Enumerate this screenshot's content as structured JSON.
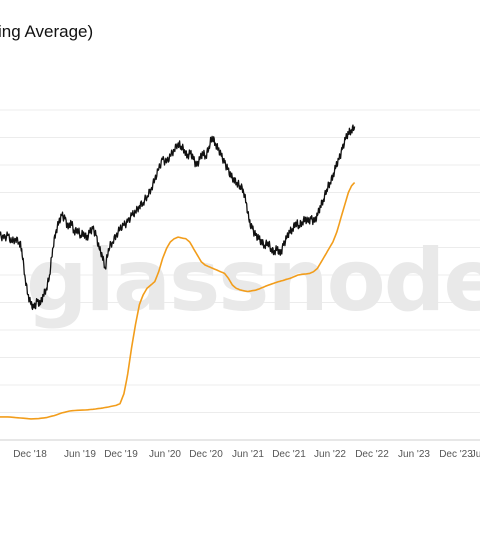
{
  "header": {
    "title": "ing Average)"
  },
  "watermark": "glassnode",
  "chart_data": {
    "type": "line",
    "title": "ing Average)",
    "xlabel": "",
    "ylabel": "",
    "x_ticks": [
      "Dec '18",
      "Jun '19",
      "Dec '19",
      "Jun '20",
      "Dec '20",
      "Jun '21",
      "Dec '21",
      "Jun '22",
      "Dec '22",
      "Jun '23",
      "Dec '23",
      "Ju"
    ],
    "y_range": [
      0,
      100
    ],
    "x_range": [
      2018.5,
      2024.7
    ],
    "grid": true,
    "series": [
      {
        "name": "",
        "color": "#111111",
        "points": [
          [
            2018.5,
            62
          ],
          [
            2018.55,
            61
          ],
          [
            2018.6,
            62
          ],
          [
            2018.65,
            60
          ],
          [
            2018.7,
            61
          ],
          [
            2018.75,
            60
          ],
          [
            2018.78,
            58
          ],
          [
            2018.82,
            50
          ],
          [
            2018.86,
            44
          ],
          [
            2018.9,
            41
          ],
          [
            2018.94,
            40
          ],
          [
            2018.98,
            42
          ],
          [
            2019.02,
            41
          ],
          [
            2019.06,
            44
          ],
          [
            2019.1,
            46
          ],
          [
            2019.14,
            50
          ],
          [
            2019.18,
            58
          ],
          [
            2019.22,
            63
          ],
          [
            2019.26,
            66
          ],
          [
            2019.3,
            68
          ],
          [
            2019.34,
            67
          ],
          [
            2019.38,
            64
          ],
          [
            2019.42,
            66
          ],
          [
            2019.46,
            63
          ],
          [
            2019.5,
            64
          ],
          [
            2019.54,
            62
          ],
          [
            2019.58,
            63
          ],
          [
            2019.62,
            61
          ],
          [
            2019.66,
            63
          ],
          [
            2019.7,
            64
          ],
          [
            2019.74,
            62
          ],
          [
            2019.78,
            58
          ],
          [
            2019.82,
            56
          ],
          [
            2019.86,
            52
          ],
          [
            2019.9,
            58
          ],
          [
            2019.95,
            60
          ],
          [
            2020.0,
            62
          ],
          [
            2020.05,
            64
          ],
          [
            2020.1,
            65
          ],
          [
            2020.15,
            66
          ],
          [
            2020.2,
            68
          ],
          [
            2020.25,
            69
          ],
          [
            2020.3,
            71
          ],
          [
            2020.35,
            72
          ],
          [
            2020.4,
            74
          ],
          [
            2020.45,
            76
          ],
          [
            2020.5,
            79
          ],
          [
            2020.55,
            82
          ],
          [
            2020.6,
            85
          ],
          [
            2020.65,
            84
          ],
          [
            2020.7,
            86
          ],
          [
            2020.75,
            88
          ],
          [
            2020.8,
            90
          ],
          [
            2020.84,
            89
          ],
          [
            2020.88,
            88
          ],
          [
            2020.92,
            86
          ],
          [
            2020.96,
            87
          ],
          [
            2021.0,
            85
          ],
          [
            2021.04,
            83
          ],
          [
            2021.08,
            85
          ],
          [
            2021.12,
            87
          ],
          [
            2021.16,
            86
          ],
          [
            2021.2,
            89
          ],
          [
            2021.24,
            92
          ],
          [
            2021.28,
            90
          ],
          [
            2021.32,
            88
          ],
          [
            2021.36,
            86
          ],
          [
            2021.4,
            84
          ],
          [
            2021.44,
            82
          ],
          [
            2021.48,
            80
          ],
          [
            2021.52,
            79
          ],
          [
            2021.56,
            78
          ],
          [
            2021.6,
            77
          ],
          [
            2021.64,
            76
          ],
          [
            2021.68,
            72
          ],
          [
            2021.72,
            66
          ],
          [
            2021.76,
            64
          ],
          [
            2021.8,
            62
          ],
          [
            2021.84,
            61
          ],
          [
            2021.88,
            60
          ],
          [
            2021.92,
            59
          ],
          [
            2021.96,
            60
          ],
          [
            2022.0,
            58
          ],
          [
            2022.04,
            57
          ],
          [
            2022.08,
            58
          ],
          [
            2022.12,
            56
          ],
          [
            2022.16,
            59
          ],
          [
            2022.2,
            61
          ],
          [
            2022.24,
            63
          ],
          [
            2022.28,
            64
          ],
          [
            2022.32,
            66
          ],
          [
            2022.36,
            65
          ],
          [
            2022.4,
            66
          ],
          [
            2022.44,
            67
          ],
          [
            2022.48,
            66
          ],
          [
            2022.52,
            67
          ],
          [
            2022.56,
            66
          ],
          [
            2022.6,
            68
          ],
          [
            2022.64,
            71
          ],
          [
            2022.68,
            73
          ],
          [
            2022.72,
            76
          ],
          [
            2022.76,
            78
          ],
          [
            2022.8,
            80
          ],
          [
            2022.84,
            83
          ],
          [
            2022.88,
            85
          ],
          [
            2022.92,
            88
          ],
          [
            2022.96,
            91
          ],
          [
            2023.0,
            93
          ],
          [
            2023.04,
            94
          ],
          [
            2023.08,
            95
          ]
        ]
      },
      {
        "name": "",
        "color": "#f29d1b",
        "points": [
          [
            2018.5,
            7
          ],
          [
            2018.6,
            7
          ],
          [
            2018.7,
            6.8
          ],
          [
            2018.8,
            6.6
          ],
          [
            2018.9,
            6.4
          ],
          [
            2019.0,
            6.5
          ],
          [
            2019.1,
            6.8
          ],
          [
            2019.2,
            7.4
          ],
          [
            2019.3,
            8.2
          ],
          [
            2019.4,
            8.8
          ],
          [
            2019.5,
            9.0
          ],
          [
            2019.6,
            9.1
          ],
          [
            2019.7,
            9.3
          ],
          [
            2019.8,
            9.6
          ],
          [
            2019.9,
            10.0
          ],
          [
            2020.0,
            10.5
          ],
          [
            2020.05,
            11
          ],
          [
            2020.1,
            14
          ],
          [
            2020.15,
            20
          ],
          [
            2020.2,
            28
          ],
          [
            2020.25,
            35
          ],
          [
            2020.3,
            41
          ],
          [
            2020.35,
            44
          ],
          [
            2020.4,
            46
          ],
          [
            2020.45,
            47
          ],
          [
            2020.5,
            48
          ],
          [
            2020.55,
            51
          ],
          [
            2020.6,
            55
          ],
          [
            2020.65,
            58
          ],
          [
            2020.7,
            60
          ],
          [
            2020.75,
            61
          ],
          [
            2020.8,
            61.5
          ],
          [
            2020.85,
            61.2
          ],
          [
            2020.9,
            61.0
          ],
          [
            2020.95,
            60
          ],
          [
            2021.0,
            58
          ],
          [
            2021.05,
            56
          ],
          [
            2021.1,
            54
          ],
          [
            2021.15,
            53
          ],
          [
            2021.2,
            52.5
          ],
          [
            2021.25,
            52
          ],
          [
            2021.3,
            51.5
          ],
          [
            2021.35,
            51
          ],
          [
            2021.4,
            50.5
          ],
          [
            2021.45,
            49
          ],
          [
            2021.5,
            47
          ],
          [
            2021.55,
            46
          ],
          [
            2021.6,
            45.5
          ],
          [
            2021.65,
            45.2
          ],
          [
            2021.7,
            45
          ],
          [
            2021.75,
            45.2
          ],
          [
            2021.8,
            45.4
          ],
          [
            2021.85,
            45.8
          ],
          [
            2021.9,
            46.3
          ],
          [
            2021.95,
            46.8
          ],
          [
            2022.0,
            47.2
          ],
          [
            2022.05,
            47.6
          ],
          [
            2022.1,
            48.0
          ],
          [
            2022.15,
            48.3
          ],
          [
            2022.2,
            48.7
          ],
          [
            2022.25,
            49.0
          ],
          [
            2022.3,
            49.5
          ],
          [
            2022.35,
            50.0
          ],
          [
            2022.4,
            50.2
          ],
          [
            2022.45,
            50.3
          ],
          [
            2022.5,
            50.5
          ],
          [
            2022.55,
            51.0
          ],
          [
            2022.6,
            52
          ],
          [
            2022.65,
            54
          ],
          [
            2022.7,
            56
          ],
          [
            2022.75,
            58
          ],
          [
            2022.8,
            60
          ],
          [
            2022.85,
            63
          ],
          [
            2022.9,
            67
          ],
          [
            2022.95,
            71
          ],
          [
            2023.0,
            75
          ],
          [
            2023.04,
            77
          ],
          [
            2023.08,
            78
          ]
        ]
      }
    ]
  }
}
